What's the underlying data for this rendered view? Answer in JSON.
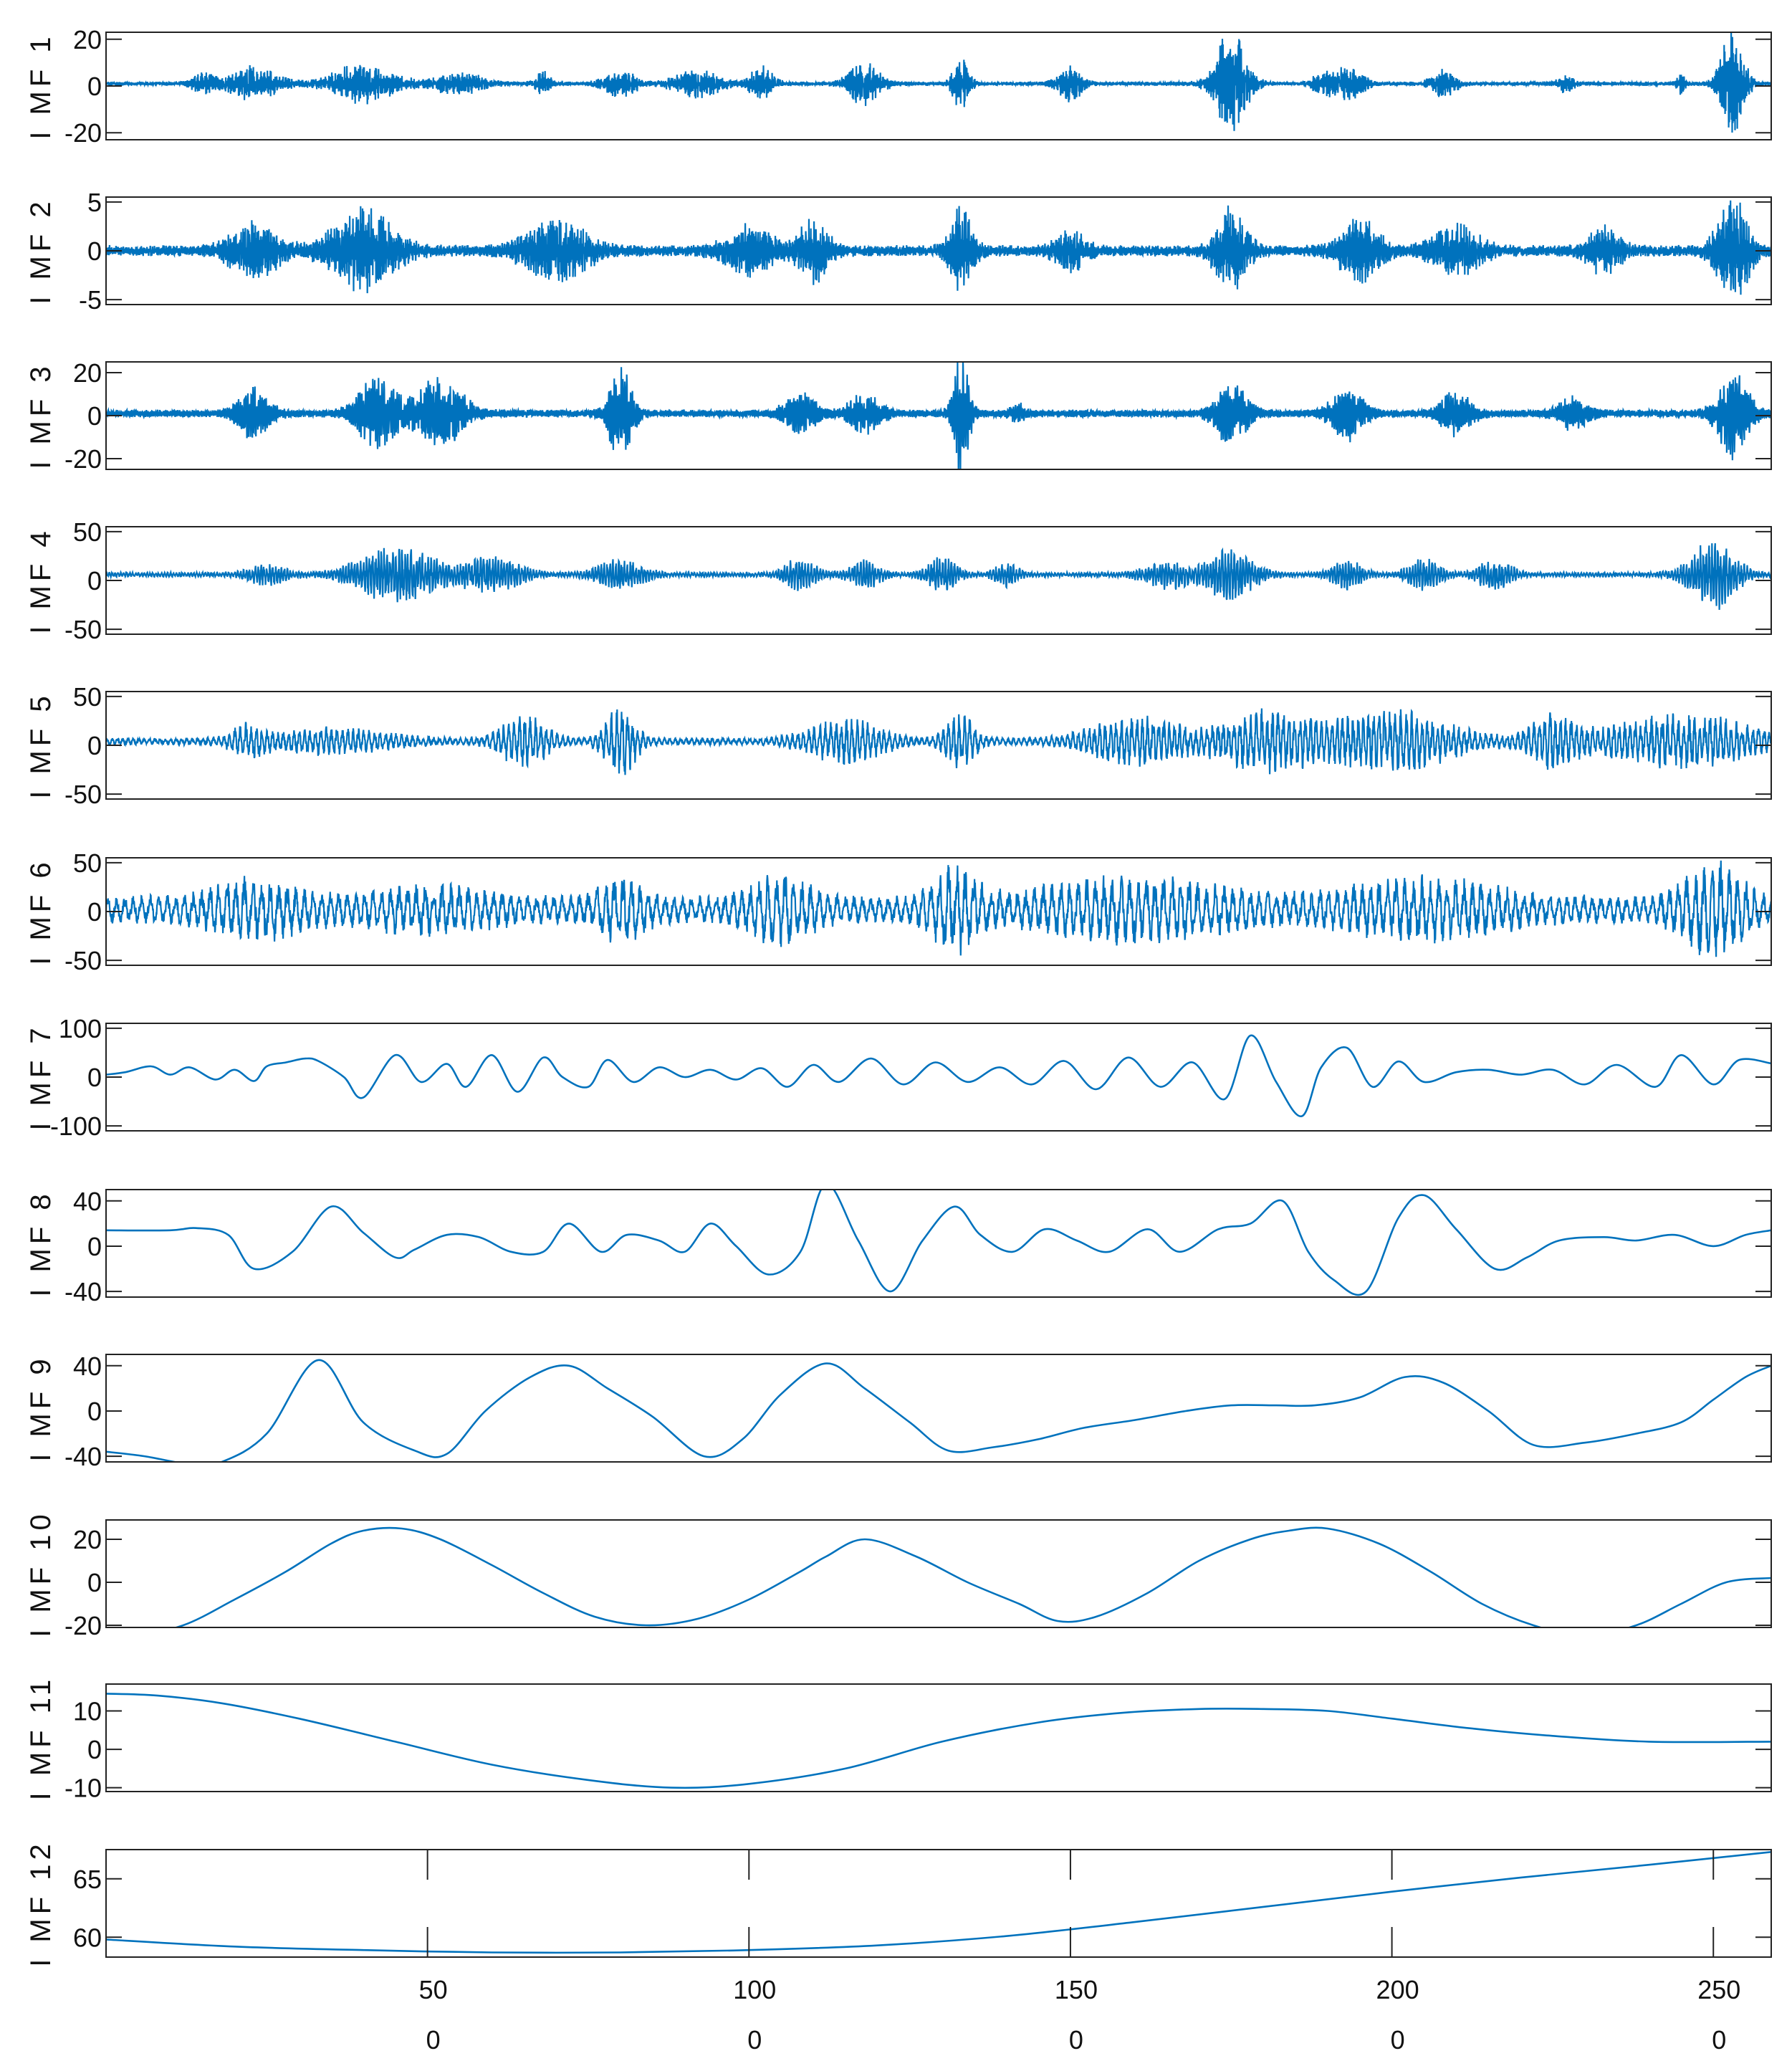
{
  "chart_data": {
    "type": "line",
    "title": "",
    "xlabel": "",
    "line_color": "#0072BD",
    "x_tick_labels": [
      {
        "top": "50",
        "bottom": "0"
      },
      {
        "top": "100",
        "bottom": "0"
      },
      {
        "top": "150",
        "bottom": "0"
      },
      {
        "top": "200",
        "bottom": "0"
      },
      {
        "top": "250",
        "bottom": "0"
      }
    ],
    "x_ticks": [
      50,
      100,
      150,
      200,
      250
    ],
    "xlim": [
      0,
      259
    ],
    "panels": [
      {
        "ylabel": "I MF 1",
        "ylim": [
          -23,
          23
        ],
        "yticks": [
          20,
          0,
          -20
        ],
        "ytick_labels": [
          "20",
          "0",
          "-20"
        ],
        "kind": "noise",
        "baseline": 1,
        "base_amp": 0.8,
        "freq": 0.9,
        "bursts": [
          [
            15,
            1.5,
            3.5
          ],
          [
            23,
            3,
            6
          ],
          [
            40,
            4,
            7
          ],
          [
            55,
            3,
            4
          ],
          [
            68,
            1,
            4
          ],
          [
            80,
            2,
            5
          ],
          [
            92,
            3,
            5
          ],
          [
            102,
            1.5,
            6
          ],
          [
            118,
            2,
            8
          ],
          [
            133,
            1,
            10
          ],
          [
            150,
            1.5,
            6
          ],
          [
            175,
            2,
            20
          ],
          [
            189,
            1,
            4
          ],
          [
            193,
            2,
            6
          ],
          [
            208,
            1.5,
            5
          ],
          [
            227,
            1,
            3
          ],
          [
            245,
            0.5,
            4
          ],
          [
            253,
            1.5,
            20
          ]
        ]
      },
      {
        "ylabel": "I MF 2",
        "ylim": [
          -5.5,
          5.5
        ],
        "yticks": [
          5,
          0,
          -5
        ],
        "ytick_labels": [
          "5",
          "0",
          "-5"
        ],
        "kind": "noise",
        "baseline": 0,
        "base_amp": 0.5,
        "freq": 0.6,
        "bursts": [
          [
            23,
            3,
            2.5
          ],
          [
            40,
            4,
            3.5
          ],
          [
            70,
            4,
            2.5
          ],
          [
            100,
            3,
            2
          ],
          [
            110,
            2,
            2.5
          ],
          [
            133,
            1.5,
            3.5
          ],
          [
            150,
            2,
            1.5
          ],
          [
            175,
            2,
            3.5
          ],
          [
            195,
            2.5,
            2.5
          ],
          [
            210,
            3,
            2
          ],
          [
            233,
            2,
            2
          ],
          [
            253,
            2,
            4.5
          ]
        ]
      },
      {
        "ylabel": "I MF 3",
        "ylim": [
          -25,
          25
        ],
        "yticks": [
          20,
          0,
          -20
        ],
        "ytick_labels": [
          "20",
          "0",
          "-20"
        ],
        "kind": "noise",
        "baseline": 1,
        "base_amp": 1.5,
        "freq": 0.35,
        "bursts": [
          [
            23,
            2,
            10
          ],
          [
            42,
            2.5,
            14
          ],
          [
            52,
            3,
            14
          ],
          [
            80,
            1.5,
            18
          ],
          [
            108,
            2,
            8
          ],
          [
            118,
            2,
            8
          ],
          [
            133,
            1,
            25
          ],
          [
            142,
            1,
            3
          ],
          [
            175,
            2,
            12
          ],
          [
            193,
            2,
            10
          ],
          [
            210,
            2,
            8
          ],
          [
            228,
            2,
            6
          ],
          [
            253,
            2,
            18
          ]
        ]
      },
      {
        "ylabel": "I MF 4",
        "ylim": [
          -55,
          55
        ],
        "yticks": [
          50,
          0,
          -50
        ],
        "ytick_labels": [
          "50",
          "0",
          "-50"
        ],
        "kind": "noise",
        "baseline": 6,
        "base_amp": 2,
        "freq": 0.22,
        "bursts": [
          [
            25,
            2.5,
            8
          ],
          [
            45,
            5,
            24
          ],
          [
            60,
            4,
            15
          ],
          [
            80,
            3,
            12
          ],
          [
            108,
            2,
            15
          ],
          [
            118,
            2,
            12
          ],
          [
            130,
            2,
            14
          ],
          [
            140,
            1.5,
            10
          ],
          [
            165,
            3,
            12
          ],
          [
            175,
            3,
            22
          ],
          [
            193,
            2,
            12
          ],
          [
            205,
            2,
            14
          ],
          [
            216,
            2,
            15
          ],
          [
            250,
            3,
            30
          ]
        ]
      },
      {
        "ylabel": "I MF 5",
        "ylim": [
          -55,
          55
        ],
        "yticks": [
          50,
          0,
          -50
        ],
        "ytick_labels": [
          "50",
          "0",
          "-50"
        ],
        "kind": "noise",
        "baseline": 4,
        "base_amp": 3,
        "freq": 0.12,
        "bursts": [
          [
            22,
            2,
            12
          ],
          [
            35,
            8,
            10
          ],
          [
            65,
            3,
            22
          ],
          [
            80,
            2,
            30
          ],
          [
            115,
            5,
            18
          ],
          [
            133,
            2,
            22
          ],
          [
            160,
            6,
            20
          ],
          [
            180,
            6,
            25
          ],
          [
            200,
            8,
            25
          ],
          [
            225,
            3,
            20
          ],
          [
            245,
            10,
            22
          ]
        ]
      },
      {
        "ylabel": "I MF 6",
        "ylim": [
          -55,
          55
        ],
        "yticks": [
          50,
          0,
          -50
        ],
        "ytick_labels": [
          "50",
          "0",
          "-50"
        ],
        "kind": "noise",
        "baseline": 2,
        "base_amp": 12,
        "freq": 0.075,
        "bursts": [
          [
            23,
            6,
            18
          ],
          [
            50,
            8,
            12
          ],
          [
            80,
            3,
            20
          ],
          [
            105,
            4,
            22
          ],
          [
            132,
            3,
            28
          ],
          [
            160,
            12,
            20
          ],
          [
            205,
            10,
            18
          ],
          [
            250,
            4,
            32
          ]
        ]
      },
      {
        "ylabel": "I MF 7",
        "ylim": [
          -110,
          110
        ],
        "yticks": [
          100,
          0,
          -100
        ],
        "ytick_labels": [
          "100",
          "0",
          "-100"
        ],
        "kind": "points",
        "x": [
          0,
          3,
          7,
          10,
          13,
          17,
          20,
          23,
          25,
          28,
          31,
          33,
          37,
          40,
          45,
          49,
          53,
          56,
          60,
          64,
          68,
          71,
          75,
          78,
          82,
          86,
          90,
          94,
          98,
          102,
          106,
          110,
          114,
          119,
          124,
          129,
          134,
          139,
          144,
          149,
          154,
          159,
          164,
          169,
          174,
          178,
          182,
          186,
          189,
          193,
          197,
          201,
          205,
          210,
          215,
          220,
          225,
          230,
          235,
          241,
          245,
          250,
          254,
          259
        ],
        "y": [
          5,
          10,
          22,
          5,
          20,
          -5,
          15,
          -8,
          22,
          30,
          38,
          33,
          0,
          -42,
          45,
          -10,
          27,
          -20,
          45,
          -30,
          40,
          0,
          -20,
          35,
          -10,
          20,
          0,
          15,
          -5,
          18,
          -20,
          25,
          -10,
          38,
          -15,
          30,
          -10,
          20,
          -15,
          33,
          -25,
          40,
          -20,
          30,
          -45,
          85,
          -10,
          -80,
          20,
          60,
          -20,
          32,
          -10,
          10,
          15,
          5,
          15,
          -15,
          25,
          -20,
          45,
          -15,
          35,
          28
        ]
      },
      {
        "ylabel": "I MF 8",
        "ylim": [
          -45,
          50
        ],
        "yticks": [
          40,
          0,
          -40
        ],
        "ytick_labels": [
          "40",
          "0",
          "-40"
        ],
        "kind": "points",
        "x": [
          0,
          10,
          14,
          19,
          23,
          29,
          35,
          40,
          45,
          48,
          53,
          58,
          63,
          68,
          72,
          77,
          81,
          86,
          90,
          94,
          98,
          103,
          108,
          112,
          117,
          122,
          127,
          132,
          136,
          141,
          146,
          151,
          156,
          162,
          167,
          173,
          178,
          183,
          187,
          191,
          196,
          201,
          205,
          210,
          216,
          221,
          226,
          233,
          238,
          244,
          250,
          255,
          259
        ],
        "y": [
          14,
          14,
          16,
          10,
          -20,
          -5,
          35,
          12,
          -10,
          -3,
          10,
          8,
          -5,
          -5,
          20,
          -5,
          10,
          5,
          -5,
          20,
          0,
          -25,
          -5,
          55,
          5,
          -40,
          5,
          35,
          10,
          -5,
          15,
          5,
          -5,
          15,
          -5,
          15,
          20,
          40,
          -5,
          -30,
          -40,
          25,
          45,
          15,
          -20,
          -10,
          5,
          8,
          5,
          10,
          0,
          10,
          14
        ]
      },
      {
        "ylabel": "I MF 9",
        "ylim": [
          -45,
          50
        ],
        "yticks": [
          40,
          0,
          -40
        ],
        "ytick_labels": [
          "40",
          "0",
          "-40"
        ],
        "kind": "points",
        "x": [
          0,
          6,
          13,
          18,
          25,
          33,
          40,
          48,
          53,
          59,
          66,
          72,
          78,
          85,
          93,
          99,
          105,
          112,
          118,
          125,
          131,
          138,
          145,
          152,
          160,
          168,
          175,
          182,
          188,
          195,
          202,
          208,
          215,
          222,
          230,
          238,
          245,
          250,
          255,
          259
        ],
        "y": [
          -36,
          -40,
          -47,
          -45,
          -20,
          45,
          -10,
          -35,
          -38,
          0,
          30,
          40,
          20,
          -5,
          -40,
          -25,
          15,
          42,
          20,
          -10,
          -35,
          -32,
          -25,
          -15,
          -8,
          0,
          5,
          5,
          5,
          12,
          30,
          25,
          0,
          -30,
          -28,
          -20,
          -10,
          10,
          30,
          40
        ]
      },
      {
        "ylabel": "I MF 10",
        "ylim": [
          -21,
          29
        ],
        "yticks": [
          20,
          0,
          -20
        ],
        "ytick_labels": [
          "20",
          "0",
          "-20"
        ],
        "kind": "points",
        "x": [
          0,
          4,
          12,
          20,
          28,
          35,
          40,
          46,
          52,
          60,
          68,
          76,
          84,
          92,
          100,
          108,
          112,
          118,
          126,
          134,
          142,
          148,
          154,
          162,
          170,
          178,
          184,
          190,
          198,
          206,
          214,
          222,
          230,
          238,
          245,
          252,
          259
        ],
        "y": [
          -25,
          -25,
          -20,
          -8,
          5,
          18,
          24,
          25,
          20,
          8,
          -5,
          -16,
          -20,
          -17,
          -8,
          5,
          12,
          20,
          12,
          0,
          -10,
          -18,
          -16,
          -5,
          10,
          20,
          24,
          25,
          18,
          5,
          -10,
          -20,
          -25,
          -20,
          -10,
          0,
          2
        ]
      },
      {
        "ylabel": "I MF 11",
        "ylim": [
          -11,
          17
        ],
        "yticks": [
          10,
          0,
          -10
        ],
        "ytick_labels": [
          "10",
          "0",
          "-10"
        ],
        "kind": "points",
        "x": [
          0,
          8,
          18,
          30,
          45,
          60,
          75,
          88,
          100,
          115,
          130,
          145,
          158,
          170,
          180,
          190,
          200,
          212,
          225,
          240,
          259
        ],
        "y": [
          14.5,
          14,
          12,
          8,
          2,
          -4,
          -8,
          -10,
          -9,
          -5,
          2,
          7,
          9.5,
          10.5,
          10.5,
          10,
          8,
          5.5,
          3.5,
          2,
          2
        ]
      },
      {
        "ylabel": "I MF 12",
        "ylim": [
          58.3,
          67.5
        ],
        "yticks": [
          65,
          60
        ],
        "ytick_labels": [
          "65",
          "60"
        ],
        "kind": "points",
        "x": [
          0,
          20,
          40,
          60,
          80,
          100,
          120,
          140,
          160,
          180,
          200,
          220,
          240,
          259
        ],
        "y": [
          59.8,
          59.2,
          58.9,
          58.7,
          58.7,
          58.9,
          59.3,
          60.1,
          61.3,
          62.6,
          63.9,
          65.1,
          66.2,
          67.3
        ]
      }
    ]
  }
}
